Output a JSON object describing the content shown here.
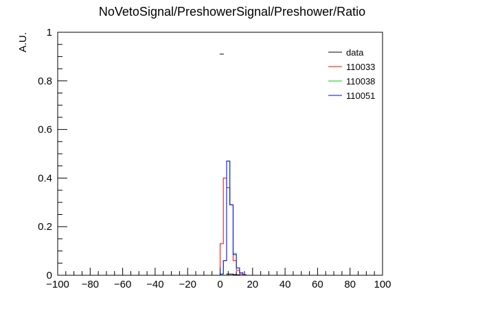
{
  "chart_data": {
    "type": "histogram",
    "title": "NoVetoSignal/PreshowerSignal/Preshower/Ratio",
    "xlabel": "",
    "ylabel": "A.U.",
    "xlim": [
      -100,
      100
    ],
    "ylim": [
      0,
      1
    ],
    "grid": false,
    "legend_position": "top-right",
    "x_ticks": [
      -100,
      -80,
      -60,
      -40,
      -20,
      0,
      20,
      40,
      60,
      80,
      100
    ],
    "y_ticks": [
      0,
      0.2,
      0.4,
      0.6,
      0.8,
      1
    ],
    "x_tick_labels": [
      "−100",
      "−80",
      "−60",
      "−40",
      "−20",
      "0",
      "20",
      "40",
      "60",
      "80",
      "100"
    ],
    "y_tick_labels": [
      "0",
      "0.2",
      "0.4",
      "0.6",
      "0.8",
      "1"
    ],
    "bin_edges": [
      0,
      2,
      4,
      6,
      8,
      10,
      12,
      14,
      16
    ],
    "series": [
      {
        "name": "data",
        "color": "#000000",
        "style": "points",
        "points": [
          {
            "x": 1,
            "y": 0.91
          },
          {
            "x": 5,
            "y": 0.005
          },
          {
            "x": 7,
            "y": 0.005
          },
          {
            "x": 9,
            "y": 0.003
          },
          {
            "x": 11,
            "y": 0.002
          }
        ]
      },
      {
        "name": "110033",
        "color": "#ff0000",
        "style": "step",
        "values": [
          0.13,
          0.4,
          0.36,
          0.29,
          0.06,
          0.02,
          0.005,
          0.001
        ]
      },
      {
        "name": "110038",
        "color": "#00cc00",
        "style": "step",
        "values": [
          0.005,
          0.06,
          0.47,
          0.29,
          0.09,
          0.03,
          0.01,
          0.002
        ]
      },
      {
        "name": "110051",
        "color": "#0000ff",
        "style": "step",
        "values": [
          0.005,
          0.06,
          0.47,
          0.29,
          0.085,
          0.03,
          0.01,
          0.002
        ]
      }
    ]
  }
}
